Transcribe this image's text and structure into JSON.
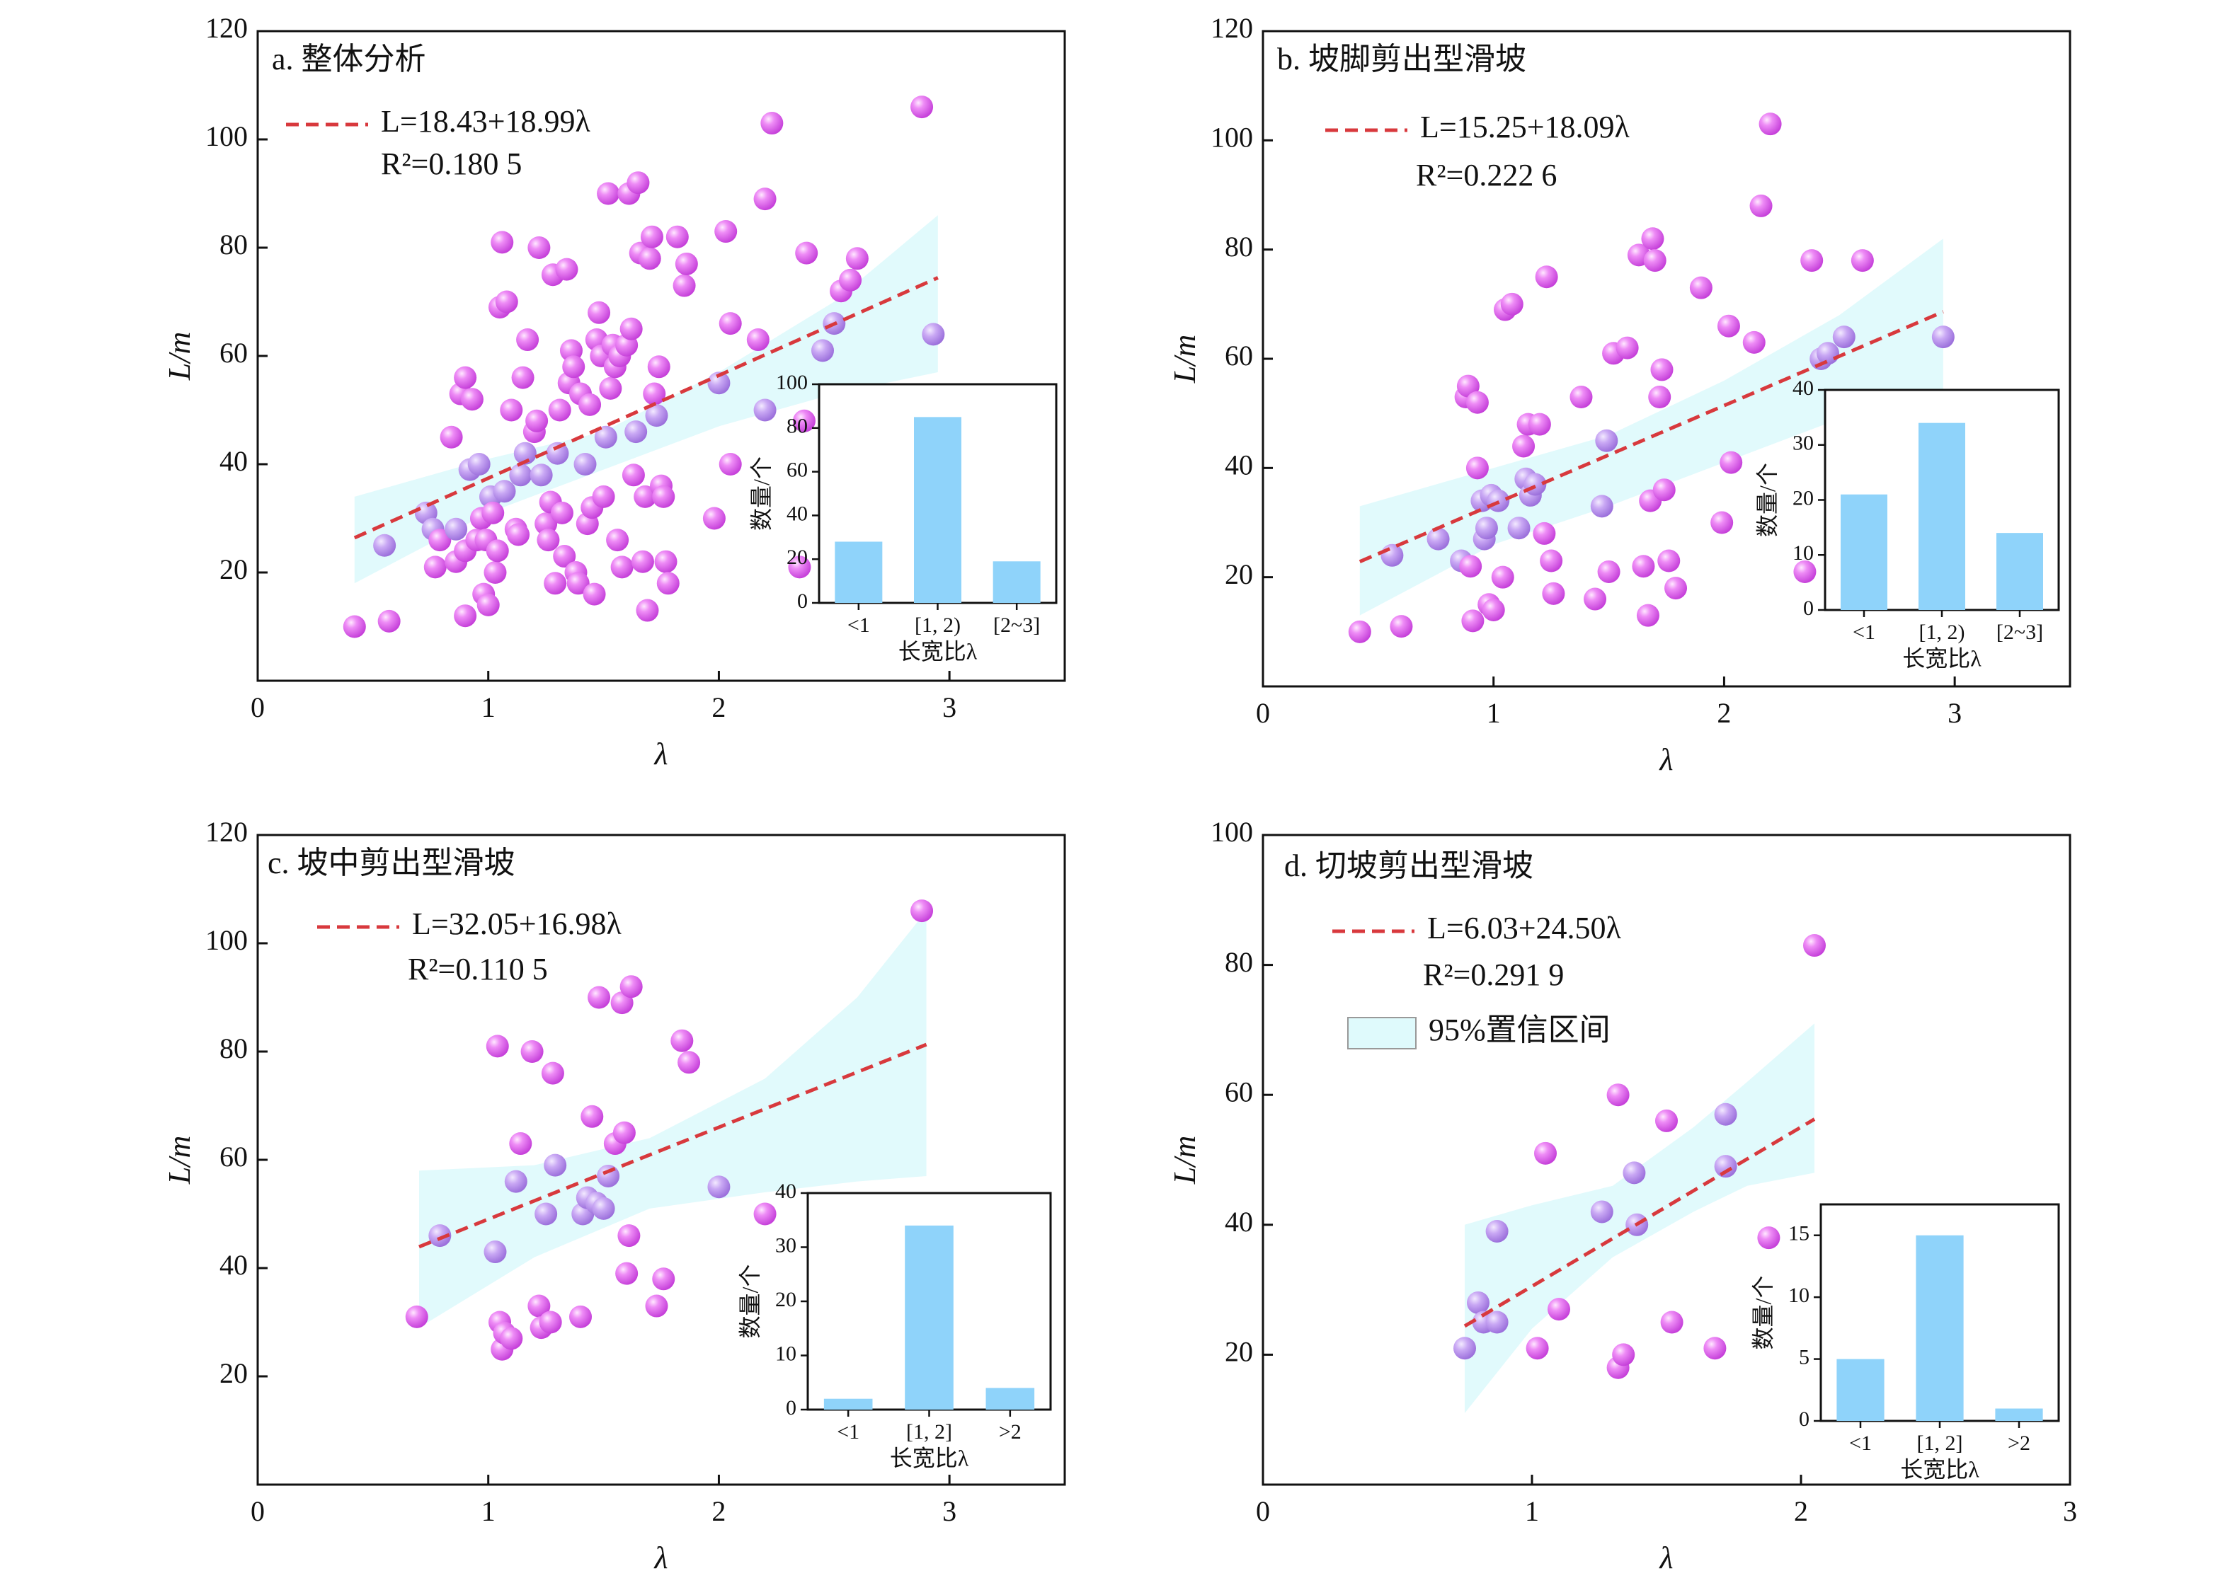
{
  "colors": {
    "point": "#e873f3",
    "point_overlap": "#c7a2f2",
    "trend": "#d8393d",
    "band": "#dffafc",
    "band_edge": "#b6ecf3",
    "bar": "#8fd3fa"
  },
  "chart_data": [
    {
      "type": "scatter",
      "title": "a. 整体分析",
      "xlabel": "λ",
      "ylabel": "L/m",
      "xlim": [
        0,
        3.5
      ],
      "ylim": [
        0,
        120
      ],
      "xticks": [
        "0",
        "1",
        "2",
        "3"
      ],
      "yticks": [
        "20",
        "40",
        "60",
        "80",
        "100",
        "120"
      ],
      "equation": "L=18.43+18.99λ",
      "r2": "R²=0.180 5",
      "regression": {
        "intercept": 18.43,
        "slope": 18.99,
        "x_range": [
          0.42,
          2.95
        ]
      },
      "confidence_band": {
        "x": [
          0.42,
          1.0,
          1.5,
          2.0,
          2.5,
          2.95
        ],
        "lower": [
          18,
          31,
          39,
          47,
          53,
          57
        ],
        "upper": [
          34,
          41,
          46,
          57,
          70,
          86
        ]
      },
      "points": [
        [
          0.42,
          10
        ],
        [
          0.57,
          11
        ],
        [
          0.55,
          25
        ],
        [
          0.73,
          31
        ],
        [
          0.76,
          28
        ],
        [
          0.77,
          21
        ],
        [
          0.79,
          26
        ],
        [
          0.84,
          45
        ],
        [
          0.86,
          28
        ],
        [
          0.86,
          22
        ],
        [
          0.88,
          53
        ],
        [
          0.9,
          56
        ],
        [
          0.9,
          12
        ],
        [
          0.9,
          24
        ],
        [
          0.92,
          39
        ],
        [
          0.93,
          52
        ],
        [
          0.95,
          26
        ],
        [
          0.96,
          40
        ],
        [
          0.97,
          30
        ],
        [
          0.98,
          16
        ],
        [
          0.99,
          26
        ],
        [
          1.0,
          14
        ],
        [
          1.01,
          34
        ],
        [
          1.02,
          31
        ],
        [
          1.03,
          20
        ],
        [
          1.04,
          24
        ],
        [
          1.05,
          69
        ],
        [
          1.06,
          81
        ],
        [
          1.07,
          35
        ],
        [
          1.08,
          70
        ],
        [
          1.1,
          50
        ],
        [
          1.12,
          28
        ],
        [
          1.13,
          27
        ],
        [
          1.14,
          38
        ],
        [
          1.15,
          56
        ],
        [
          1.16,
          42
        ],
        [
          1.17,
          63
        ],
        [
          1.2,
          46
        ],
        [
          1.21,
          48
        ],
        [
          1.22,
          80
        ],
        [
          1.23,
          38
        ],
        [
          1.25,
          29
        ],
        [
          1.26,
          26
        ],
        [
          1.27,
          33
        ],
        [
          1.28,
          75
        ],
        [
          1.29,
          18
        ],
        [
          1.3,
          42
        ],
        [
          1.31,
          50
        ],
        [
          1.32,
          31
        ],
        [
          1.33,
          23
        ],
        [
          1.34,
          76
        ],
        [
          1.35,
          55
        ],
        [
          1.36,
          61
        ],
        [
          1.37,
          58
        ],
        [
          1.38,
          20
        ],
        [
          1.39,
          18
        ],
        [
          1.4,
          53
        ],
        [
          1.42,
          40
        ],
        [
          1.43,
          29
        ],
        [
          1.44,
          51
        ],
        [
          1.45,
          32
        ],
        [
          1.46,
          16
        ],
        [
          1.47,
          63
        ],
        [
          1.48,
          68
        ],
        [
          1.49,
          60
        ],
        [
          1.5,
          34
        ],
        [
          1.51,
          45
        ],
        [
          1.52,
          90
        ],
        [
          1.53,
          54
        ],
        [
          1.54,
          62
        ],
        [
          1.55,
          58
        ],
        [
          1.56,
          26
        ],
        [
          1.57,
          60
        ],
        [
          1.58,
          21
        ],
        [
          1.6,
          62
        ],
        [
          1.61,
          90
        ],
        [
          1.62,
          65
        ],
        [
          1.63,
          38
        ],
        [
          1.64,
          46
        ],
        [
          1.65,
          92
        ],
        [
          1.66,
          79
        ],
        [
          1.67,
          22
        ],
        [
          1.68,
          34
        ],
        [
          1.69,
          13
        ],
        [
          1.7,
          78
        ],
        [
          1.71,
          82
        ],
        [
          1.72,
          53
        ],
        [
          1.73,
          49
        ],
        [
          1.74,
          58
        ],
        [
          1.75,
          36
        ],
        [
          1.76,
          34
        ],
        [
          1.77,
          22
        ],
        [
          1.78,
          18
        ],
        [
          1.82,
          82
        ],
        [
          1.85,
          73
        ],
        [
          1.86,
          77
        ],
        [
          1.98,
          30
        ],
        [
          2.0,
          55
        ],
        [
          2.03,
          83
        ],
        [
          2.05,
          40
        ],
        [
          2.05,
          66
        ],
        [
          2.17,
          63
        ],
        [
          2.2,
          50
        ],
        [
          2.2,
          89
        ],
        [
          2.23,
          103
        ],
        [
          2.35,
          21
        ],
        [
          2.37,
          48
        ],
        [
          2.38,
          79
        ],
        [
          2.45,
          61
        ],
        [
          2.5,
          66
        ],
        [
          2.53,
          72
        ],
        [
          2.57,
          74
        ],
        [
          2.6,
          78
        ],
        [
          2.88,
          106
        ],
        [
          2.93,
          64
        ]
      ],
      "inset": {
        "type": "bar",
        "categories": [
          "<1",
          "[1, 2)",
          "[2~3]"
        ],
        "values": [
          28,
          85,
          19
        ],
        "ylim": [
          0,
          100
        ],
        "yticks": [
          "0",
          "20",
          "40",
          "60",
          "80",
          "100"
        ],
        "xlabel": "长宽比λ",
        "ylabel": "数量/个"
      }
    },
    {
      "type": "scatter",
      "title": "b. 坡脚剪出型滑坡",
      "xlabel": "λ",
      "ylabel": "L/m",
      "xlim": [
        0,
        3.5
      ],
      "ylim": [
        0,
        120
      ],
      "xticks": [
        "0",
        "1",
        "2",
        "3"
      ],
      "yticks": [
        "20",
        "40",
        "60",
        "80",
        "100",
        "120"
      ],
      "equation": "L=15.25+18.09λ",
      "r2": "R²=0.222 6",
      "regression": {
        "intercept": 15.25,
        "slope": 18.09,
        "x_range": [
          0.42,
          2.95
        ]
      },
      "confidence_band": {
        "x": [
          0.42,
          1.0,
          1.5,
          2.0,
          2.5,
          2.95
        ],
        "lower": [
          13,
          26,
          33,
          41,
          49,
          54
        ],
        "upper": [
          33,
          40,
          46,
          56,
          68,
          82
        ]
      },
      "points": [
        [
          0.42,
          10
        ],
        [
          0.56,
          24
        ],
        [
          0.6,
          11
        ],
        [
          0.76,
          27
        ],
        [
          0.86,
          23
        ],
        [
          0.88,
          53
        ],
        [
          0.89,
          55
        ],
        [
          0.9,
          22
        ],
        [
          0.91,
          12
        ],
        [
          0.93,
          52
        ],
        [
          0.93,
          40
        ],
        [
          0.95,
          34
        ],
        [
          0.96,
          27
        ],
        [
          0.97,
          29
        ],
        [
          0.98,
          15
        ],
        [
          0.99,
          35
        ],
        [
          1.0,
          14
        ],
        [
          1.02,
          34
        ],
        [
          1.04,
          20
        ],
        [
          1.05,
          69
        ],
        [
          1.08,
          70
        ],
        [
          1.11,
          29
        ],
        [
          1.13,
          44
        ],
        [
          1.14,
          38
        ],
        [
          1.15,
          48
        ],
        [
          1.16,
          35
        ],
        [
          1.18,
          37
        ],
        [
          1.2,
          48
        ],
        [
          1.22,
          28
        ],
        [
          1.23,
          75
        ],
        [
          1.25,
          23
        ],
        [
          1.26,
          17
        ],
        [
          1.38,
          53
        ],
        [
          1.44,
          16
        ],
        [
          1.47,
          33
        ],
        [
          1.49,
          45
        ],
        [
          1.5,
          21
        ],
        [
          1.52,
          61
        ],
        [
          1.58,
          62
        ],
        [
          1.63,
          79
        ],
        [
          1.65,
          22
        ],
        [
          1.67,
          13
        ],
        [
          1.68,
          34
        ],
        [
          1.69,
          82
        ],
        [
          1.7,
          78
        ],
        [
          1.72,
          53
        ],
        [
          1.73,
          58
        ],
        [
          1.74,
          36
        ],
        [
          1.76,
          23
        ],
        [
          1.79,
          18
        ],
        [
          1.9,
          73
        ],
        [
          1.99,
          30
        ],
        [
          2.02,
          66
        ],
        [
          2.03,
          41
        ],
        [
          2.13,
          63
        ],
        [
          2.16,
          88
        ],
        [
          2.2,
          103
        ],
        [
          2.35,
          21
        ],
        [
          2.38,
          78
        ],
        [
          2.42,
          60
        ],
        [
          2.45,
          61
        ],
        [
          2.52,
          64
        ],
        [
          2.6,
          78
        ],
        [
          2.95,
          64
        ]
      ],
      "inset": {
        "type": "bar",
        "categories": [
          "<1",
          "[1, 2)",
          "[2~3]"
        ],
        "values": [
          21,
          34,
          14
        ],
        "ylim": [
          0,
          40
        ],
        "yticks": [
          "0",
          "10",
          "20",
          "30",
          "40"
        ],
        "xlabel": "长宽比λ",
        "ylabel": "数量/个"
      }
    },
    {
      "type": "scatter",
      "title": "c. 坡中剪出型滑坡",
      "xlabel": "λ",
      "ylabel": "L/m",
      "xlim": [
        0,
        3.5
      ],
      "ylim": [
        0,
        120
      ],
      "xticks": [
        "0",
        "1",
        "2",
        "3"
      ],
      "yticks": [
        "20",
        "40",
        "60",
        "80",
        "100",
        "120"
      ],
      "equation": "L=32.05+16.98λ",
      "r2": "R²=0.110 5",
      "regression": {
        "intercept": 32.05,
        "slope": 16.98,
        "x_range": [
          0.7,
          2.9
        ]
      },
      "confidence_band": {
        "x": [
          0.7,
          1.2,
          1.7,
          2.2,
          2.6,
          2.9
        ],
        "lower": [
          29,
          42,
          51,
          54,
          56,
          57
        ],
        "upper": [
          58,
          59,
          64,
          75,
          90,
          106
        ]
      },
      "points": [
        [
          0.69,
          31
        ],
        [
          0.79,
          46
        ],
        [
          1.03,
          43
        ],
        [
          1.04,
          81
        ],
        [
          1.05,
          30
        ],
        [
          1.06,
          25
        ],
        [
          1.07,
          28
        ],
        [
          1.1,
          27
        ],
        [
          1.12,
          56
        ],
        [
          1.14,
          63
        ],
        [
          1.19,
          80
        ],
        [
          1.22,
          33
        ],
        [
          1.23,
          29
        ],
        [
          1.25,
          50
        ],
        [
          1.27,
          30
        ],
        [
          1.28,
          76
        ],
        [
          1.29,
          59
        ],
        [
          1.4,
          31
        ],
        [
          1.41,
          50
        ],
        [
          1.43,
          53
        ],
        [
          1.45,
          68
        ],
        [
          1.47,
          52
        ],
        [
          1.48,
          90
        ],
        [
          1.5,
          51
        ],
        [
          1.52,
          57
        ],
        [
          1.55,
          63
        ],
        [
          1.58,
          89
        ],
        [
          1.59,
          65
        ],
        [
          1.6,
          39
        ],
        [
          1.61,
          46
        ],
        [
          1.62,
          92
        ],
        [
          1.73,
          33
        ],
        [
          1.76,
          38
        ],
        [
          1.84,
          82
        ],
        [
          1.87,
          78
        ],
        [
          2.0,
          55
        ],
        [
          2.2,
          50
        ],
        [
          2.88,
          106
        ]
      ],
      "inset": {
        "type": "bar",
        "categories": [
          "<1",
          "[1, 2]",
          ">2"
        ],
        "values": [
          2,
          34,
          4
        ],
        "ylim": [
          0,
          40
        ],
        "yticks": [
          "0",
          "10",
          "20",
          "30",
          "40"
        ],
        "xlabel": "长宽比λ",
        "ylabel": "数量/个"
      }
    },
    {
      "type": "scatter",
      "title": "d. 切坡剪出型滑坡",
      "xlabel": "λ",
      "ylabel": "L/m",
      "xlim": [
        0,
        3
      ],
      "ylim": [
        0,
        100
      ],
      "xticks": [
        "0",
        "1",
        "2",
        "3"
      ],
      "yticks": [
        "20",
        "40",
        "60",
        "80",
        "100"
      ],
      "equation": "L=6.03+24.50λ",
      "r2": "R²=0.291 9",
      "legend_band_label": "95%置信区间",
      "regression": {
        "intercept": 6.03,
        "slope": 24.5,
        "x_range": [
          0.75,
          2.05
        ]
      },
      "confidence_band": {
        "x": [
          0.75,
          1.0,
          1.3,
          1.6,
          1.8,
          2.05
        ],
        "lower": [
          11,
          24,
          35,
          42,
          46,
          48
        ],
        "upper": [
          40,
          43,
          46,
          55,
          62,
          71
        ]
      },
      "points": [
        [
          0.75,
          21
        ],
        [
          0.8,
          28
        ],
        [
          0.82,
          25
        ],
        [
          0.87,
          39
        ],
        [
          0.87,
          25
        ],
        [
          1.02,
          21
        ],
        [
          1.05,
          51
        ],
        [
          1.1,
          27
        ],
        [
          1.26,
          42
        ],
        [
          1.32,
          18
        ],
        [
          1.32,
          60
        ],
        [
          1.34,
          20
        ],
        [
          1.38,
          48
        ],
        [
          1.39,
          40
        ],
        [
          1.5,
          56
        ],
        [
          1.52,
          25
        ],
        [
          1.68,
          21
        ],
        [
          1.72,
          57
        ],
        [
          1.72,
          49
        ],
        [
          1.88,
          38
        ],
        [
          2.05,
          83
        ]
      ],
      "inset": {
        "type": "bar",
        "categories": [
          "<1",
          "[1, 2]",
          ">2"
        ],
        "values": [
          5,
          15,
          1
        ],
        "ylim": [
          0,
          17.5
        ],
        "yticks": [
          "0",
          "5",
          "10",
          "15"
        ],
        "xlabel": "长宽比λ",
        "ylabel": "数量/个"
      }
    }
  ]
}
